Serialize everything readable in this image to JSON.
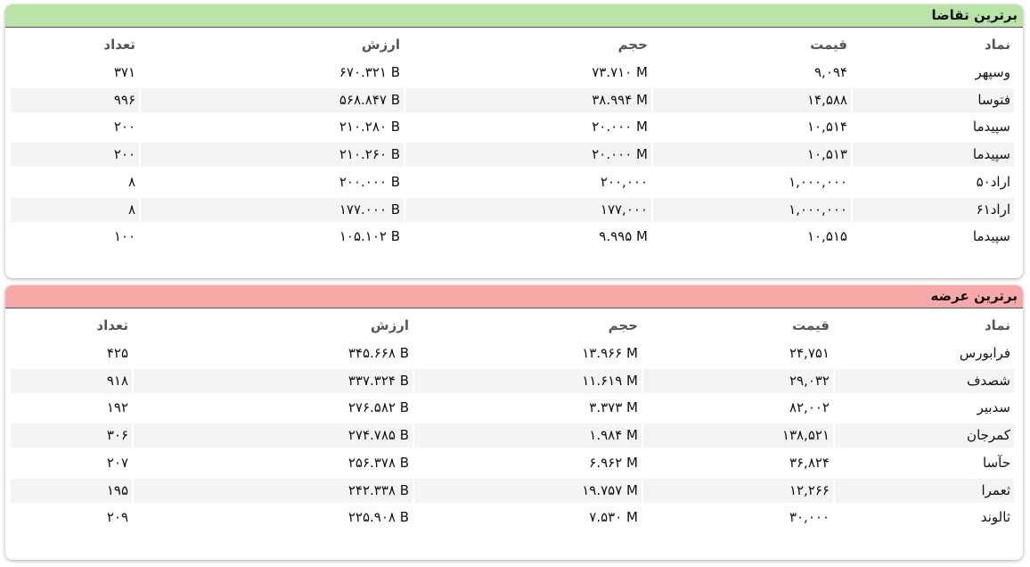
{
  "tables": [
    {
      "title": "برترین تقاضا",
      "header": [
        "نماد",
        "قیمت",
        "حجم",
        "ارزش",
        "تعداد"
      ],
      "rows": [
        [
          "وسپهر",
          "۹,۰۹۴",
          "۷۳.۷۱۰ M",
          "۶۷۰.۳۲۱ B",
          "۳۷۱"
        ],
        [
          "فتوسا",
          "۱۴,۵۸۸",
          "۳۸.۹۹۴ M",
          "۵۶۸.۸۴۷ B",
          "۹۹۶"
        ],
        [
          "سپیدما",
          "۱۰,۵۱۴",
          "۲۰.۰۰۰ M",
          "۲۱۰.۲۸۰ B",
          "۲۰۰"
        ],
        [
          "سپیدما",
          "۱۰,۵۱۳",
          "۲۰.۰۰۰ M",
          "۲۱۰.۲۶۰ B",
          "۲۰۰"
        ],
        [
          "اراد۵۰",
          "۱,۰۰۰,۰۰۰",
          "۲۰۰,۰۰۰",
          "۲۰۰.۰۰۰ B",
          "۸"
        ],
        [
          "اراد۶۱",
          "۱,۰۰۰,۰۰۰",
          "۱۷۷,۰۰۰",
          "۱۷۷.۰۰۰ B",
          "۸"
        ],
        [
          "سپیدما",
          "۱۰,۵۱۵",
          "۹.۹۹۵ M",
          "۱۰۵.۱۰۲ B",
          "۱۰۰"
        ]
      ]
    },
    {
      "title": "برترین عرضه",
      "header": [
        "نماد",
        "قیمت",
        "حجم",
        "ارزش",
        "تعداد"
      ],
      "rows": [
        [
          "فرابورس",
          "۲۴,۷۵۱",
          "۱۳.۹۶۶ M",
          "۳۴۵.۶۶۸ B",
          "۴۲۵"
        ],
        [
          "شصدف",
          "۲۹,۰۳۲",
          "۱۱.۶۱۹ M",
          "۳۳۷.۳۲۴ B",
          "۹۱۸"
        ],
        [
          "سدبیر",
          "۸۲,۰۰۲",
          "۳.۳۷۳ M",
          "۲۷۶.۵۸۲ B",
          "۱۹۲"
        ],
        [
          "کمرجان",
          "۱۳۸,۵۲۱",
          "۱.۹۸۴ M",
          "۲۷۴.۷۸۵ B",
          "۳۰۶"
        ],
        [
          "حآسا",
          "۳۶,۸۲۴",
          "۶.۹۶۲ M",
          "۲۵۶.۳۷۸ B",
          "۲۰۷"
        ],
        [
          "ثعمرا",
          "۱۲,۲۶۶",
          "۱۹.۷۵۷ M",
          "۲۴۲.۳۳۸ B",
          "۱۹۵"
        ],
        [
          "ثالوند",
          "۳۰,۰۰۰",
          "۷.۵۳۰ M",
          "۲۲۵.۹۰۸ B",
          "۲۰۹"
        ]
      ]
    }
  ]
}
